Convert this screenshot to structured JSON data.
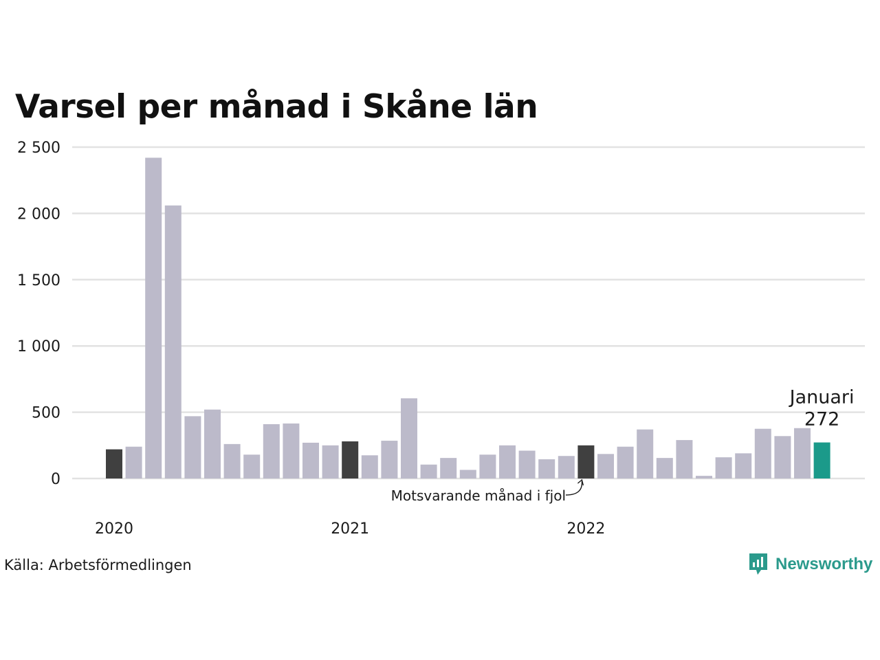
{
  "title": "Varsel per månad i Skåne län",
  "source": "Källa: Arbetsförmedlingen",
  "brand": "Newsworthy",
  "colors": {
    "default_bar": "#bcbaca",
    "comparison_bar": "#404040",
    "highlight_bar": "#1b9a8a",
    "grid": "#e2e2e2"
  },
  "chart_data": {
    "type": "bar",
    "ylim": [
      0,
      2500
    ],
    "yticks": [
      0,
      500,
      1000,
      1500,
      2000,
      2500
    ],
    "ytick_labels": [
      "0",
      "500",
      "1 000",
      "1 500",
      "2 000",
      "2 500"
    ],
    "year_labels": [
      {
        "label": "2020",
        "index": 0
      },
      {
        "label": "2021",
        "index": 12
      },
      {
        "label": "2022",
        "index": 24
      }
    ],
    "grid": true,
    "values": [
      220,
      240,
      2420,
      2060,
      470,
      520,
      260,
      180,
      410,
      415,
      270,
      250,
      280,
      175,
      285,
      605,
      105,
      155,
      65,
      180,
      250,
      210,
      145,
      170,
      250,
      185,
      240,
      370,
      155,
      290,
      20,
      160,
      190,
      375,
      320,
      380,
      272
    ],
    "comparison_indices": [
      0,
      12,
      24
    ],
    "highlight_index": 36,
    "highlight_label": "Januari",
    "highlight_value_label": "272",
    "annotation": "Motsvarande månad i fjol",
    "annotation_index": 24
  }
}
